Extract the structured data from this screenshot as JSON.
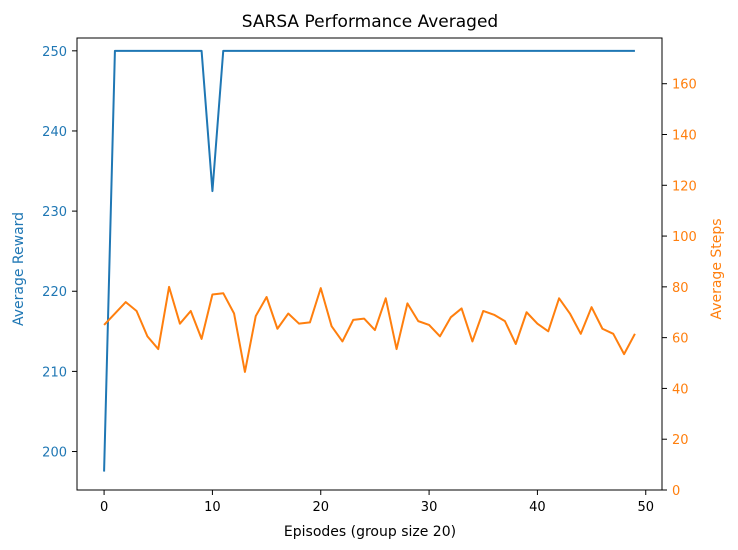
{
  "chart_data": {
    "type": "line",
    "title": "SARSA Performance Averaged",
    "xlabel": "Episodes (group size 20)",
    "ylabel_left": "Average Reward",
    "ylabel_right": "Average Steps",
    "xlim": [
      -2.5,
      51.5
    ],
    "ylim_left": [
      195.2,
      251.6
    ],
    "ylim_right": [
      0,
      178
    ],
    "xticks": [
      0,
      10,
      20,
      30,
      40,
      50
    ],
    "yticks_left": [
      200,
      210,
      220,
      230,
      240,
      250
    ],
    "yticks_right": [
      0,
      20,
      40,
      60,
      80,
      100,
      120,
      140,
      160
    ],
    "grid": false,
    "colors": {
      "left": "#1f77b4",
      "right": "#ff7f0e"
    },
    "series": [
      {
        "axis": "left",
        "x": [
          0,
          1,
          2,
          3,
          4,
          5,
          6,
          7,
          8,
          9,
          10,
          11,
          12,
          13,
          14,
          15,
          16,
          17,
          18,
          19,
          20,
          21,
          22,
          23,
          24,
          25,
          26,
          27,
          28,
          29,
          30,
          31,
          32,
          33,
          34,
          35,
          36,
          37,
          38,
          39,
          40,
          41,
          42,
          43,
          44,
          45,
          46,
          47,
          48,
          49
        ],
        "values": [
          197.5,
          250,
          250,
          250,
          250,
          250,
          250,
          250,
          250,
          250,
          232.5,
          250,
          250,
          250,
          250,
          250,
          250,
          250,
          250,
          250,
          250,
          250,
          250,
          250,
          250,
          250,
          250,
          250,
          250,
          250,
          250,
          250,
          250,
          250,
          250,
          250,
          250,
          250,
          250,
          250,
          250,
          250,
          250,
          250,
          250,
          250,
          250,
          250,
          250,
          250
        ]
      },
      {
        "axis": "right",
        "x": [
          0,
          1,
          2,
          3,
          4,
          5,
          6,
          7,
          8,
          9,
          10,
          11,
          12,
          13,
          14,
          15,
          16,
          17,
          18,
          19,
          20,
          21,
          22,
          23,
          24,
          25,
          26,
          27,
          28,
          29,
          30,
          31,
          32,
          33,
          34,
          35,
          36,
          37,
          38,
          39,
          40,
          41,
          42,
          43,
          44,
          45,
          46,
          47,
          48,
          49
        ],
        "values": [
          65,
          69.5,
          74,
          70.5,
          60.5,
          55.5,
          80,
          65.5,
          70.5,
          59.5,
          77,
          77.5,
          69.5,
          46.5,
          68.5,
          76,
          63.5,
          69.5,
          65.5,
          66,
          79.5,
          64.5,
          58.5,
          67,
          67.5,
          63,
          75.5,
          55.5,
          73.5,
          66.5,
          65,
          60.5,
          68,
          71.5,
          58.5,
          70.5,
          69,
          66.5,
          57.5,
          70,
          65.5,
          62.5,
          75.5,
          69.5,
          61.5,
          72,
          63.5,
          61.5,
          53.5,
          61.5
        ]
      }
    ]
  }
}
